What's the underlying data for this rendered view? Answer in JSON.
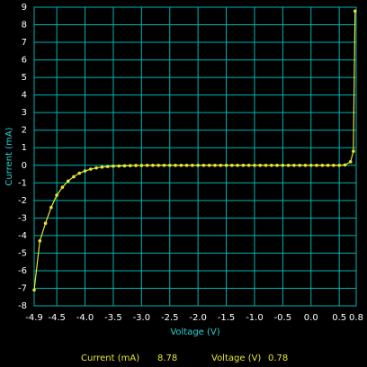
{
  "chart_data": {
    "type": "line",
    "x_label": "Voltage (V)",
    "y_label": "Current (mA)",
    "x": [
      -4.9,
      -4.8,
      -4.7,
      -4.6,
      -4.5,
      -4.4,
      -4.3,
      -4.2,
      -4.1,
      -4.0,
      -3.9,
      -3.8,
      -3.7,
      -3.6,
      -3.5,
      -3.4,
      -3.3,
      -3.2,
      -3.1,
      -3.0,
      -2.9,
      -2.8,
      -2.7,
      -2.6,
      -2.5,
      -2.4,
      -2.3,
      -2.2,
      -2.1,
      -2.0,
      -1.9,
      -1.8,
      -1.7,
      -1.6,
      -1.5,
      -1.4,
      -1.3,
      -1.2,
      -1.1,
      -1.0,
      -0.9,
      -0.8,
      -0.7,
      -0.6,
      -0.5,
      -0.4,
      -0.3,
      -0.2,
      -0.1,
      0,
      0.1,
      0.2,
      0.3,
      0.4,
      0.5,
      0.6,
      0.7,
      0.75,
      0.78
    ],
    "values": [
      -7.1,
      -4.3,
      -3.3,
      -2.4,
      -1.7,
      -1.25,
      -0.9,
      -0.65,
      -0.45,
      -0.32,
      -0.22,
      -0.15,
      -0.1,
      -0.07,
      -0.05,
      -0.04,
      -0.03,
      -0.02,
      -0.01,
      -0.01,
      0,
      0,
      0,
      0,
      0,
      0,
      0,
      0,
      0,
      0,
      0,
      0,
      0,
      0,
      0,
      0,
      0,
      0,
      0,
      0,
      0,
      0,
      0,
      0,
      0,
      0,
      0,
      0,
      0,
      0,
      0,
      0,
      0,
      0,
      0,
      0.02,
      0.2,
      0.8,
      8.78
    ],
    "color": "#e6e632",
    "grid": true,
    "grid_color": "#00b4b4",
    "xlim": [
      -4.9,
      0.8
    ],
    "xticks": [
      -4.9,
      -4.5,
      {
        "value": -4,
        "label": "-4.0"
      },
      -3.5,
      {
        "value": -3,
        "label": "-3.0"
      },
      -2.5,
      {
        "value": -2,
        "label": "-2.0"
      },
      -1.5,
      {
        "value": -1,
        "label": "-1.0"
      },
      -0.5,
      {
        "value": 0,
        "label": "0.0"
      },
      0.5,
      0.8
    ],
    "ylim": [
      -8,
      9
    ],
    "yticks": [
      -8,
      -7,
      -6,
      -5,
      -4,
      -3,
      -2,
      -1,
      0,
      1,
      2,
      3,
      4,
      5,
      6,
      7,
      8,
      9
    ]
  },
  "readout": {
    "current_label": "Current (mA)",
    "current_value": 8.78,
    "voltage_label": "Voltage (V)",
    "voltage_value": 0.78
  }
}
